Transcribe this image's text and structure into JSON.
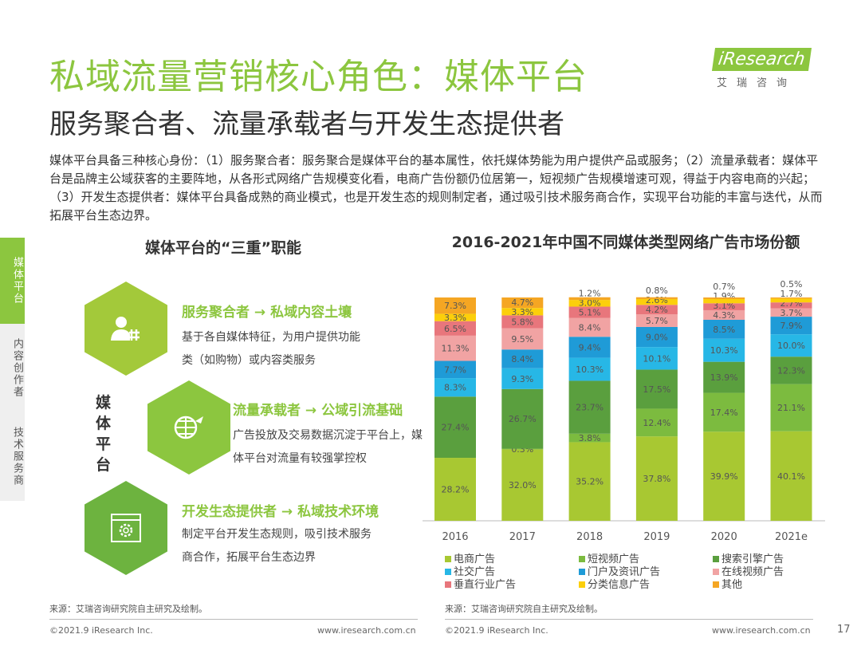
{
  "header": {
    "title": "私域流量营销核心角色：媒体平台",
    "subtitle": "服务聚合者、流量承载者与开发生态提供者",
    "logo_text": "iResearch",
    "logo_sub": "艾瑞咨询"
  },
  "intro": "媒体平台具备三种核心身份：（1）服务聚合者：服务聚合是媒体平台的基本属性，依托媒体势能为用户提供产品或服务；（2）流量承载者：媒体平台是品牌主公域获客的主要阵地，从各形式网络广告规模变化看，电商广告份额仍位居第一，短视频广告规模增速可观，得益于内容电商的兴起；（3）开发生态提供者：媒体平台具备成熟的商业模式，也是开发生态的规则制定者，通过吸引技术服务商合作，实现平台功能的丰富与迭代，从而拓展平台生态边界。",
  "side_tabs": [
    {
      "label": "媒体平台",
      "active": true
    },
    {
      "label": "内容创作者"
    },
    {
      "label": "技术服务商"
    }
  ],
  "left": {
    "title": "媒体平台的“三重”职能",
    "center": "媒体平台",
    "roles": [
      {
        "heading": "服务聚合者 → 私域内容土壤",
        "desc": "基于各自媒体特征，为用户提供功能类（如购物）或内容类服务",
        "icon": "user-hash-icon",
        "color": "#a3c93a"
      },
      {
        "heading": "流量承载者 → 公域引流基础",
        "desc": "广告投放及交易数据沉淀于平台上，媒体平台对流量有较强掌控权",
        "icon": "globe-plane-icon",
        "color": "#8cc63f"
      },
      {
        "heading": "开发生态提供者 → 私域技术环境",
        "desc": "制定平台开发生态规则，吸引技术服务商合作，拓展平台生态边界",
        "icon": "browser-gear-icon",
        "color": "#6db33f"
      }
    ]
  },
  "chart_data": {
    "type": "bar",
    "stacked": true,
    "title": "2016-2021年中国不同媒体类型网络广告市场份额",
    "categories": [
      "2016",
      "2017",
      "2018",
      "2019",
      "2020",
      "2021e"
    ],
    "ylim": [
      0,
      100
    ],
    "legend": "bottom",
    "series": [
      {
        "name": "电商广告",
        "color": "#a8c832",
        "values": [
          28.2,
          32.0,
          35.2,
          37.8,
          39.9,
          40.1
        ]
      },
      {
        "name": "短视频广告",
        "color": "#7cbb3f",
        "values": [
          null,
          0.3,
          3.8,
          12.4,
          17.4,
          21.1
        ]
      },
      {
        "name": "搜索引擎广告",
        "color": "#5a9f3e",
        "values": [
          27.4,
          26.7,
          23.7,
          17.5,
          13.9,
          12.3
        ]
      },
      {
        "name": "社交广告",
        "color": "#27b7e6",
        "values": [
          8.3,
          9.3,
          10.3,
          10.1,
          10.3,
          10.0
        ]
      },
      {
        "name": "门户及资讯广告",
        "color": "#1f9bd7",
        "values": [
          7.7,
          8.4,
          9.4,
          9.0,
          8.5,
          7.9
        ]
      },
      {
        "name": "在线视频广告",
        "color": "#f1a3a3",
        "values": [
          11.3,
          9.5,
          8.4,
          5.7,
          4.3,
          3.7
        ]
      },
      {
        "name": "垂直行业广告",
        "color": "#e8767c",
        "values": [
          6.5,
          5.8,
          5.1,
          4.2,
          3.1,
          2.7
        ]
      },
      {
        "name": "分类信息广告",
        "color": "#fccf0b",
        "values": [
          3.3,
          3.3,
          3.0,
          2.6,
          1.9,
          1.7
        ]
      },
      {
        "name": "其他",
        "color": "#f5a623",
        "values": [
          7.3,
          4.7,
          1.2,
          0.8,
          0.7,
          0.5
        ]
      }
    ]
  },
  "footer": {
    "source": "来源：艾瑞咨询研究院自主研究及绘制。",
    "copyright": "©2021.9 iResearch Inc.",
    "url": "www.iresearch.com.cn",
    "page": "17"
  }
}
